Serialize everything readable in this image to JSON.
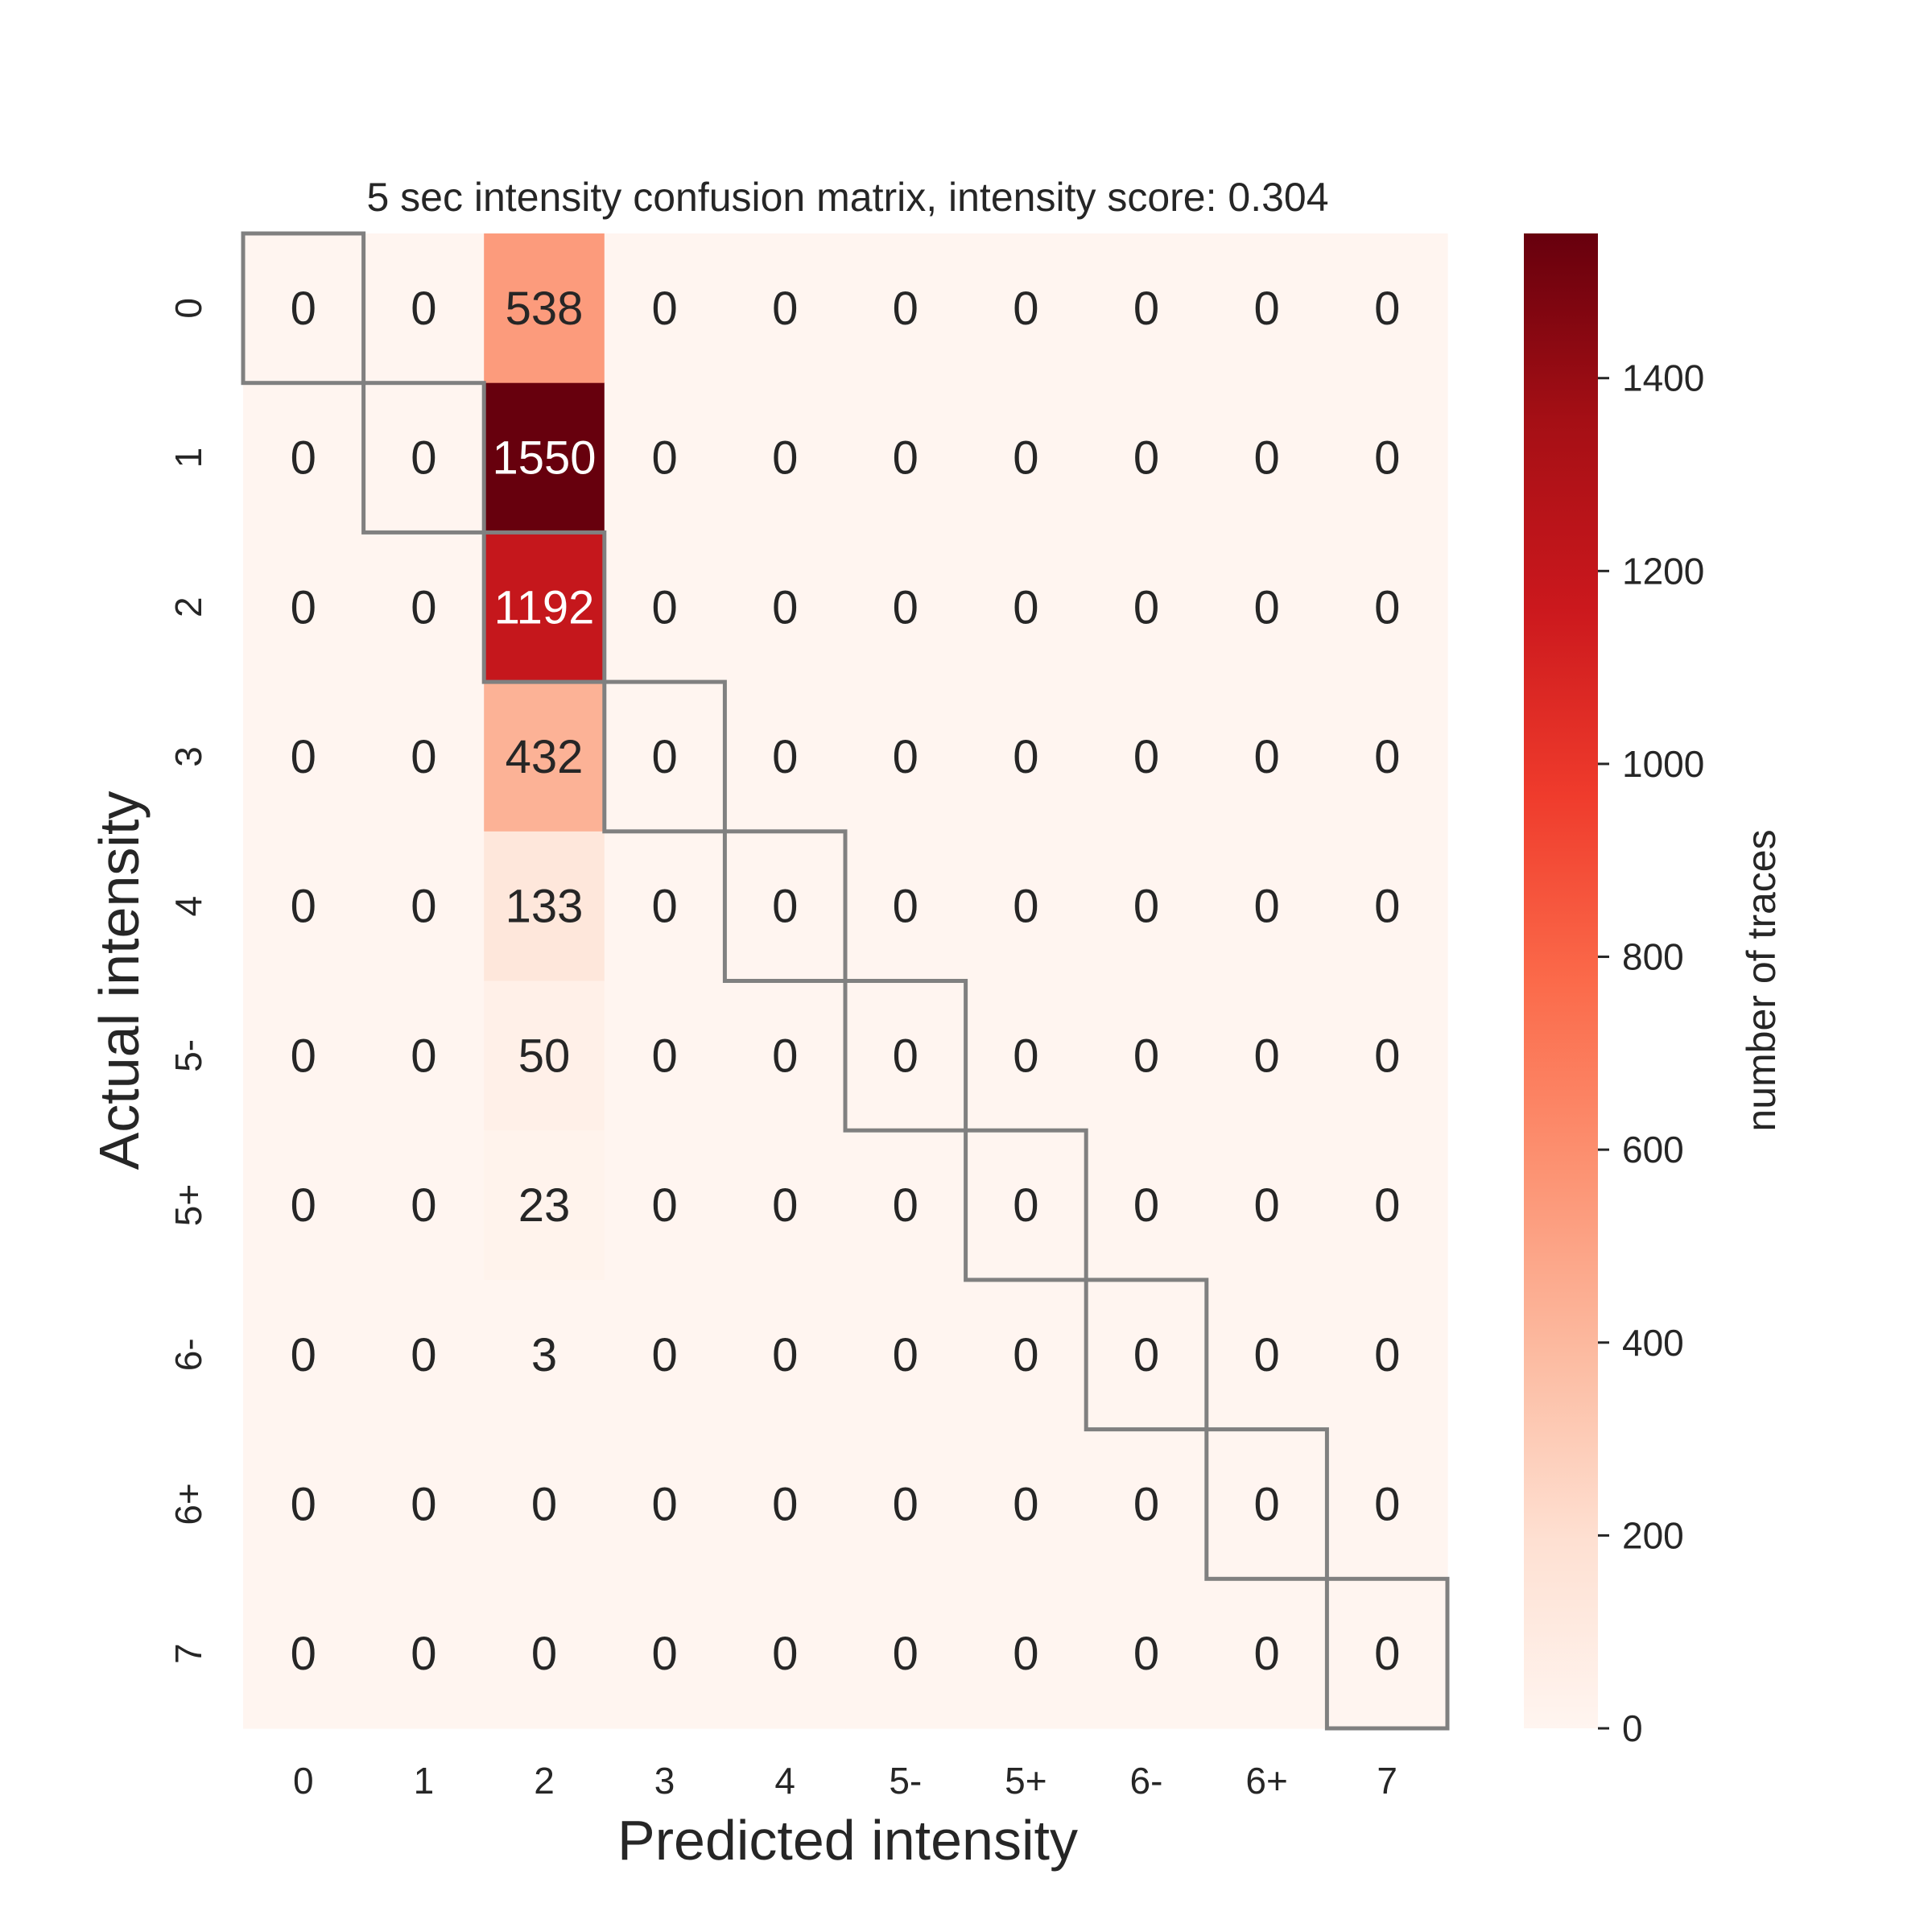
{
  "chart_data": {
    "type": "heatmap",
    "title": "5 sec intensity confusion matrix, intensity score: 0.304",
    "xlabel": "Predicted intensity",
    "ylabel": "Actual intensity",
    "x_categories": [
      "0",
      "1",
      "2",
      "3",
      "4",
      "5-",
      "5+",
      "6-",
      "6+",
      "7"
    ],
    "y_categories": [
      "0",
      "1",
      "2",
      "3",
      "4",
      "5-",
      "5+",
      "6-",
      "6+",
      "7"
    ],
    "values": [
      [
        0,
        0,
        538,
        0,
        0,
        0,
        0,
        0,
        0,
        0
      ],
      [
        0,
        0,
        1550,
        0,
        0,
        0,
        0,
        0,
        0,
        0
      ],
      [
        0,
        0,
        1192,
        0,
        0,
        0,
        0,
        0,
        0,
        0
      ],
      [
        0,
        0,
        432,
        0,
        0,
        0,
        0,
        0,
        0,
        0
      ],
      [
        0,
        0,
        133,
        0,
        0,
        0,
        0,
        0,
        0,
        0
      ],
      [
        0,
        0,
        50,
        0,
        0,
        0,
        0,
        0,
        0,
        0
      ],
      [
        0,
        0,
        23,
        0,
        0,
        0,
        0,
        0,
        0,
        0
      ],
      [
        0,
        0,
        3,
        0,
        0,
        0,
        0,
        0,
        0,
        0
      ],
      [
        0,
        0,
        0,
        0,
        0,
        0,
        0,
        0,
        0,
        0
      ],
      [
        0,
        0,
        0,
        0,
        0,
        0,
        0,
        0,
        0,
        0
      ]
    ],
    "colormap": [
      "#fff5f0",
      "#fee0d2",
      "#fcbba1",
      "#fc9272",
      "#fb6a4a",
      "#ef3b2c",
      "#cb181d",
      "#a50f15",
      "#67000d"
    ],
    "colorbar": {
      "label": "number of traces",
      "range": [
        0,
        1550
      ],
      "ticks": [
        "0",
        "200",
        "400",
        "600",
        "800",
        "1000",
        "1200",
        "1400"
      ]
    },
    "highlight_boxes": "diagonal",
    "highlight_color": "#808080"
  }
}
